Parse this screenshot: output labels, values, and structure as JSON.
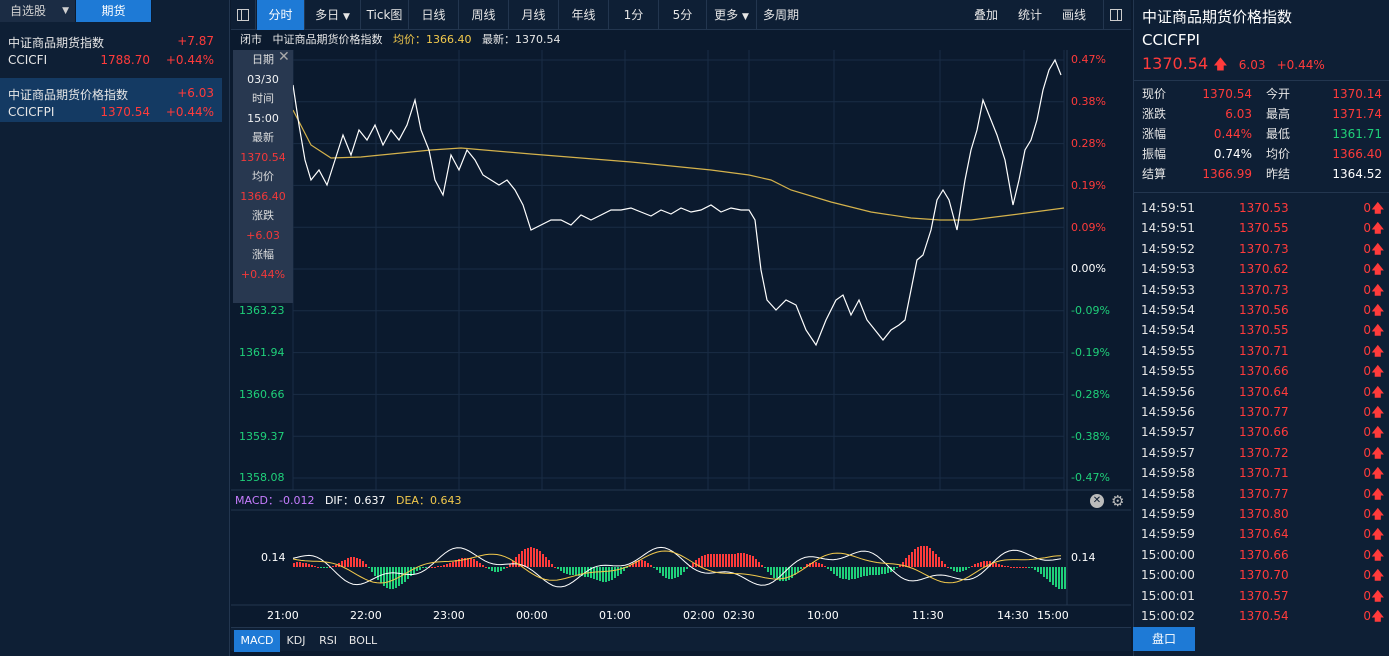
{
  "left": {
    "tabs": [
      {
        "label": "自选股",
        "has_menu": true
      },
      {
        "label": "期货"
      }
    ],
    "items": [
      {
        "name": "中证商品期货指数",
        "code": "CCICFI",
        "change": "+7.87",
        "price": "1788.70",
        "pct": "+0.44%"
      },
      {
        "name": "中证商品期货价格指数",
        "code": "CCICFPI",
        "change": "+6.03",
        "price": "1370.54",
        "pct": "+0.44%"
      }
    ]
  },
  "toolbar": {
    "buttons": [
      {
        "label": "分时"
      },
      {
        "label": "多日",
        "has_menu": true
      },
      {
        "label": "Tick图"
      },
      {
        "label": "日线"
      },
      {
        "label": "周线"
      },
      {
        "label": "月线"
      },
      {
        "label": "年线"
      },
      {
        "label": "1分"
      },
      {
        "label": "5分"
      },
      {
        "label": "更多",
        "has_menu": true
      },
      {
        "label": "多周期"
      }
    ],
    "right_buttons": [
      {
        "label": "叠加"
      },
      {
        "label": "统计"
      },
      {
        "label": "画线"
      }
    ]
  },
  "infobar": {
    "status": "闭市",
    "name": "中证商品期货价格指数",
    "avg_label": "均价：",
    "avg": "1366.40",
    "last_label": "最新：",
    "last": "1370.54"
  },
  "tooltip": {
    "items": [
      {
        "label": "日期"
      },
      {
        "value": "03/30",
        "color": "white"
      },
      {
        "label": "时间"
      },
      {
        "value": "15:00",
        "color": "white"
      },
      {
        "label": "最新"
      },
      {
        "value": "1370.54",
        "color": "red"
      },
      {
        "label": "均价"
      },
      {
        "value": "1366.40",
        "color": "red"
      },
      {
        "label": "涨跌"
      },
      {
        "value": "+6.03",
        "color": "red"
      },
      {
        "label": "涨幅"
      },
      {
        "value": "+0.44%",
        "color": "red"
      }
    ]
  },
  "price_axis": {
    "left_visible": [
      "1363.23",
      "1361.94",
      "1360.66",
      "1359.37",
      "1358.08"
    ],
    "right_pct": [
      "0.47%",
      "0.38%",
      "0.28%",
      "0.19%",
      "0.09%",
      "0.00%",
      "-0.09%",
      "-0.19%",
      "-0.28%",
      "-0.38%",
      "-0.47%"
    ]
  },
  "time_axis": [
    "21:00",
    "22:00",
    "23:00",
    "00:00",
    "01:00",
    "02:00",
    "02:30",
    "10:00",
    "11:30",
    "14:30",
    "15:00"
  ],
  "macd": {
    "label": "MACD：",
    "macd": "-0.012",
    "dif_label": "DIF：",
    "dif": "0.637",
    "dea_label": "DEA：",
    "dea": "0.643",
    "axis_value": "0.14"
  },
  "indicator_tabs": [
    {
      "label": "MACD"
    },
    {
      "label": "KDJ"
    },
    {
      "label": "RSI"
    },
    {
      "label": "BOLL"
    }
  ],
  "right": {
    "title": "中证商品期货价格指数",
    "code": "CCICFPI",
    "price": "1370.54",
    "change": "6.03",
    "pct": "+0.44%",
    "stats": [
      {
        "l1": "现价",
        "v1": "1370.54",
        "c1": "red",
        "l2": "今开",
        "v2": "1370.14",
        "c2": "red"
      },
      {
        "l1": "涨跌",
        "v1": "6.03",
        "c1": "red",
        "l2": "最高",
        "v2": "1371.74",
        "c2": "red"
      },
      {
        "l1": "涨幅",
        "v1": "0.44%",
        "c1": "red",
        "l2": "最低",
        "v2": "1361.71",
        "c2": "green"
      },
      {
        "l1": "振幅",
        "v1": "0.74%",
        "c1": "white",
        "l2": "均价",
        "v2": "1366.40",
        "c2": "red"
      },
      {
        "l1": "结算",
        "v1": "1366.99",
        "c1": "red",
        "l2": "昨结",
        "v2": "1364.52",
        "c2": "white"
      }
    ],
    "ticks": [
      {
        "t": "14:59:51",
        "p": "1370.53",
        "v": "0"
      },
      {
        "t": "14:59:51",
        "p": "1370.55",
        "v": "0"
      },
      {
        "t": "14:59:52",
        "p": "1370.73",
        "v": "0"
      },
      {
        "t": "14:59:53",
        "p": "1370.62",
        "v": "0"
      },
      {
        "t": "14:59:53",
        "p": "1370.73",
        "v": "0"
      },
      {
        "t": "14:59:54",
        "p": "1370.56",
        "v": "0"
      },
      {
        "t": "14:59:54",
        "p": "1370.55",
        "v": "0"
      },
      {
        "t": "14:59:55",
        "p": "1370.71",
        "v": "0"
      },
      {
        "t": "14:59:55",
        "p": "1370.66",
        "v": "0"
      },
      {
        "t": "14:59:56",
        "p": "1370.64",
        "v": "0"
      },
      {
        "t": "14:59:56",
        "p": "1370.77",
        "v": "0"
      },
      {
        "t": "14:59:57",
        "p": "1370.66",
        "v": "0"
      },
      {
        "t": "14:59:57",
        "p": "1370.72",
        "v": "0"
      },
      {
        "t": "14:59:58",
        "p": "1370.71",
        "v": "0"
      },
      {
        "t": "14:59:58",
        "p": "1370.77",
        "v": "0"
      },
      {
        "t": "14:59:59",
        "p": "1370.80",
        "v": "0"
      },
      {
        "t": "14:59:59",
        "p": "1370.64",
        "v": "0"
      },
      {
        "t": "15:00:00",
        "p": "1370.66",
        "v": "0"
      },
      {
        "t": "15:00:00",
        "p": "1370.70",
        "v": "0"
      },
      {
        "t": "15:00:01",
        "p": "1370.57",
        "v": "0"
      },
      {
        "t": "15:00:02",
        "p": "1370.54",
        "v": "0"
      }
    ],
    "pankou": "盘口"
  },
  "colors": {
    "up": "#ff3b3b",
    "down": "#1fd07a",
    "price_line": "#ffffff",
    "avg_line": "#d4b24c",
    "accent": "#1e7ad6"
  }
}
